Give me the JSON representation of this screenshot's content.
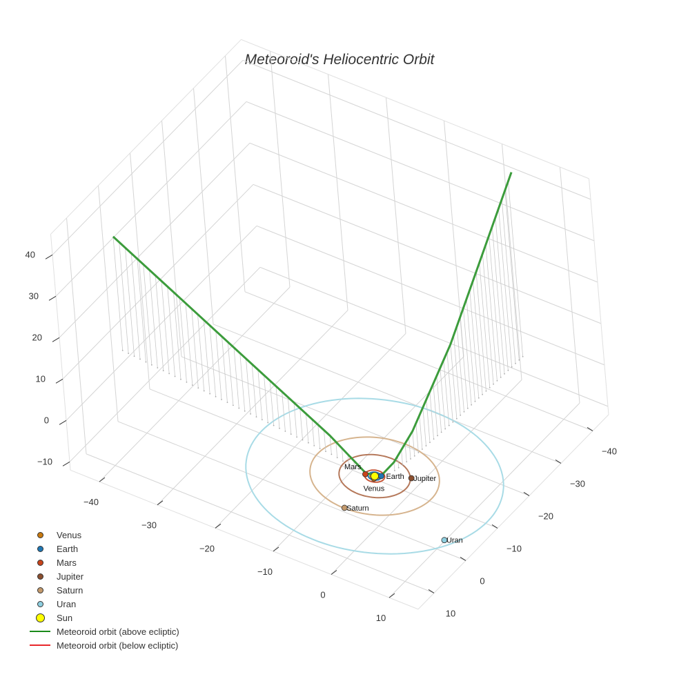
{
  "chart_data": {
    "type": "scatter3d",
    "title": "Meteoroid's Heliocentric Orbit",
    "axes": {
      "x": {
        "range": [
          -45,
          15
        ],
        "ticks": [
          -40,
          -30,
          -20,
          -10,
          0,
          10
        ]
      },
      "y": {
        "range": [
          -45,
          15
        ],
        "ticks": [
          -40,
          -30,
          -20,
          -10,
          0,
          10
        ]
      },
      "z": {
        "range": [
          -12,
          45
        ],
        "ticks": [
          -10,
          0,
          10,
          20,
          30,
          40
        ]
      },
      "grid": true
    },
    "planets": [
      {
        "name": "Venus",
        "color": "#c8790f",
        "orbit_radius": 0.72,
        "position": [
          0.2,
          0.6
        ],
        "label": "Venus"
      },
      {
        "name": "Earth",
        "color": "#1f77b4",
        "orbit_radius": 1.0,
        "position": [
          0.8,
          -0.6
        ],
        "label": "Earth"
      },
      {
        "name": "Mars",
        "color": "#c8431a",
        "orbit_radius": 1.52,
        "position": [
          -1.4,
          0.4
        ],
        "label": "Mars"
      },
      {
        "name": "Jupiter",
        "color": "#8b4f2f",
        "orbit_radius": 5.4,
        "position": [
          4.8,
          -2.8
        ],
        "label": "Jupiter"
      },
      {
        "name": "Saturn",
        "color": "#c49a6c",
        "orbit_radius": 9.8,
        "position": [
          0.1,
          9.7
        ],
        "label": "Saturn"
      },
      {
        "name": "Uran",
        "color": "#8ecfe0",
        "orbit_radius": 19.5,
        "position": [
          16.4,
          8.0
        ],
        "label": "Uran"
      }
    ],
    "orbit_colors": {
      "Mars": "#c8583a",
      "Jupiter": "#b5785a",
      "Saturn": "#d6b48e",
      "Uran": "#a8dbe6"
    },
    "sun": {
      "name": "Sun",
      "color": "#ffff00",
      "position": [
        0,
        0,
        0
      ]
    },
    "meteoroid_above": {
      "name": "Meteoroid orbit (above ecliptic)",
      "color": "#3c9c3c",
      "points": [
        [
          -46.5,
          -5.5,
          27.5
        ],
        [
          -24,
          -2.9,
          14
        ],
        [
          -8,
          -1,
          4.5
        ],
        [
          -1.3,
          0.4,
          0.3
        ],
        [
          0.8,
          -0.5,
          0.1
        ],
        [
          1.8,
          -3,
          2
        ],
        [
          2.5,
          -8,
          6
        ],
        [
          3.2,
          -20,
          18
        ],
        [
          3.9,
          -40.7,
          43.7
        ]
      ]
    },
    "meteoroid_below": {
      "name": "Meteoroid orbit (below ecliptic)",
      "color": "#e8262a",
      "points": []
    },
    "legend": {
      "placement": "bottom-left",
      "entries": [
        "Venus",
        "Earth",
        "Mars",
        "Jupiter",
        "Saturn",
        "Uran",
        "Sun",
        "Meteoroid orbit (above ecliptic)",
        "Meteoroid orbit (below ecliptic)"
      ]
    }
  }
}
